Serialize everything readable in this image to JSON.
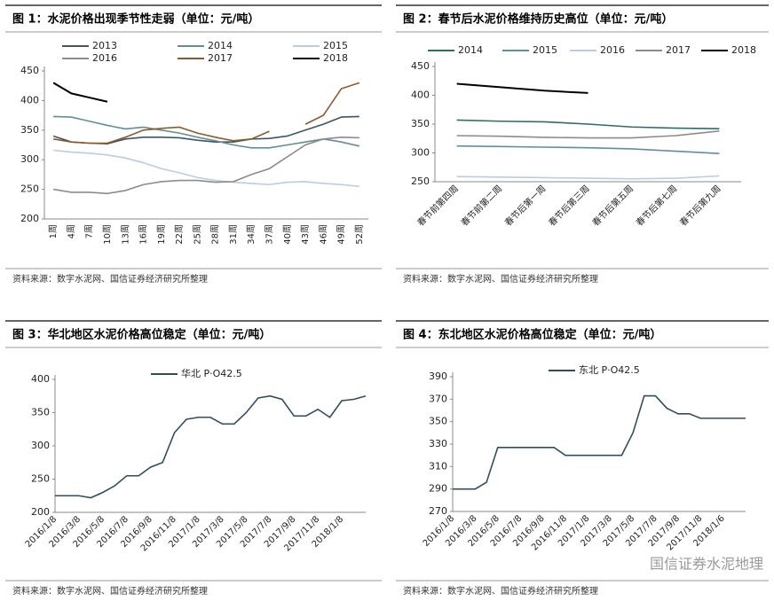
{
  "chart_data": [
    {
      "type": "line",
      "title": "图 1：水泥价格出现季节性走弱（单位：元/吨）",
      "source": "资料来源：数字水泥网、国信证券经济研究所整理",
      "categories": [
        "1周",
        "4周",
        "7周",
        "10周",
        "13周",
        "16周",
        "19周",
        "22周",
        "25周",
        "28周",
        "31周",
        "34周",
        "37周",
        "40周",
        "43周",
        "46周",
        "49周",
        "52周"
      ],
      "series": [
        {
          "name": "2013",
          "color": "#3b5566",
          "values": [
            340,
            330,
            328,
            327,
            335,
            338,
            338,
            337,
            333,
            330,
            330,
            335,
            336,
            340,
            350,
            360,
            372,
            373
          ]
        },
        {
          "name": "2014",
          "color": "#5f8f9b",
          "values": [
            373,
            372,
            365,
            358,
            352,
            355,
            350,
            345,
            338,
            332,
            325,
            320,
            320,
            325,
            330,
            335,
            330,
            323
          ]
        },
        {
          "name": "2015",
          "color": "#b8cce4",
          "values": [
            316,
            313,
            311,
            308,
            303,
            295,
            285,
            278,
            270,
            265,
            262,
            260,
            258,
            262,
            263,
            260,
            258,
            255
          ]
        },
        {
          "name": "2016",
          "color": "#8c8c8c",
          "values": [
            250,
            245,
            245,
            243,
            248,
            258,
            263,
            265,
            265,
            262,
            263,
            275,
            285,
            305,
            325,
            335,
            338,
            337
          ]
        },
        {
          "name": "2017",
          "color": "#8b5a2b",
          "values": [
            335,
            330,
            328,
            328,
            338,
            350,
            353,
            355,
            345,
            338,
            332,
            335,
            348,
            null,
            360,
            375,
            420,
            430
          ]
        },
        {
          "name": "2018",
          "color": "#000000",
          "values": [
            430,
            412,
            405,
            398,
            null,
            null,
            null,
            null,
            null,
            null,
            null,
            null,
            null,
            null,
            null,
            null,
            null,
            null
          ]
        }
      ],
      "ylim": [
        200,
        450
      ],
      "yticks": [
        200,
        250,
        300,
        350,
        400,
        450
      ]
    },
    {
      "type": "line",
      "title": "图 2：春节后水泥价格维持历史高位（单位：元/吨）",
      "source": "资料来源：数字水泥网、国信证券经济研究所整理",
      "categories": [
        "春节前第四周",
        "春节前第二周",
        "春节后第一周",
        "春节后第三周",
        "春节后第五周",
        "春节后第七周",
        "春节后第九周"
      ],
      "series": [
        {
          "name": "2014",
          "color": "#2e6b6b",
          "values": [
            357,
            355,
            354,
            350,
            345,
            343,
            342
          ]
        },
        {
          "name": "2015",
          "color": "#5f8f9b",
          "values": [
            312,
            311,
            310,
            309,
            307,
            303,
            299
          ]
        },
        {
          "name": "2016",
          "color": "#b8cce4",
          "values": [
            259,
            258,
            257,
            256,
            255,
            256,
            260
          ]
        },
        {
          "name": "2017",
          "color": "#8c8c8c",
          "values": [
            330,
            329,
            327,
            326,
            326,
            330,
            338
          ]
        },
        {
          "name": "2018",
          "color": "#000000",
          "values": [
            420,
            414,
            408,
            404,
            null,
            null,
            null
          ]
        }
      ],
      "ylim": [
        250,
        450
      ],
      "yticks": [
        250,
        300,
        350,
        400,
        450
      ]
    },
    {
      "type": "line",
      "title": "图 3：华北地区水泥价格高位稳定（单位：元/吨）",
      "source": "资料来源：数字水泥网、国信证券经济研究所整理",
      "categories": [
        "2016/1/8",
        null,
        "2016/3/8",
        null,
        "2016/5/8",
        null,
        "2016/7/8",
        null,
        "2016/9/8",
        null,
        "2016/11/8",
        null,
        "2017/1/8",
        null,
        "2017/3/8",
        null,
        "2017/5/8",
        null,
        "2017/7/8",
        null,
        "2017/9/8",
        null,
        "2017/11/8",
        null,
        "2018/1/8",
        null,
        null
      ],
      "series": [
        {
          "name": "华北 P·O42.5",
          "color": "#2f4f5a",
          "values": [
            225,
            225,
            225,
            222,
            230,
            240,
            255,
            255,
            268,
            275,
            320,
            340,
            343,
            343,
            333,
            333,
            350,
            372,
            375,
            370,
            345,
            345,
            355,
            343,
            368,
            370,
            375
          ]
        }
      ],
      "ylim": [
        200,
        400
      ],
      "yticks": [
        200,
        250,
        300,
        350,
        400
      ]
    },
    {
      "type": "line",
      "title": "图 4：东北地区水泥价格高位稳定（单位：元/吨）",
      "source": "资料来源：数字水泥网、国信证券经济研究所整理",
      "watermark": "国信证券水泥地理",
      "categories": [
        "2016/1/8",
        null,
        "2016/3/8",
        null,
        "2016/5/8",
        null,
        "2016/7/8",
        null,
        "2016/9/8",
        null,
        "2016/11/8",
        null,
        "2017/1/8",
        null,
        "2017/3/8",
        null,
        "2017/5/8",
        null,
        "2017/7/8",
        null,
        "2017/9/8",
        null,
        "2017/11/8",
        null,
        "2018/1/6",
        null,
        null
      ],
      "series": [
        {
          "name": "东北 P·O42.5",
          "color": "#2f4f5a",
          "values": [
            290,
            290,
            290,
            296,
            327,
            327,
            327,
            327,
            327,
            327,
            320,
            320,
            320,
            320,
            320,
            320,
            340,
            373,
            373,
            362,
            357,
            357,
            353,
            353,
            353,
            353,
            353
          ]
        }
      ],
      "ylim": [
        270,
        390
      ],
      "yticks": [
        270,
        290,
        310,
        330,
        350,
        370,
        390
      ]
    }
  ]
}
